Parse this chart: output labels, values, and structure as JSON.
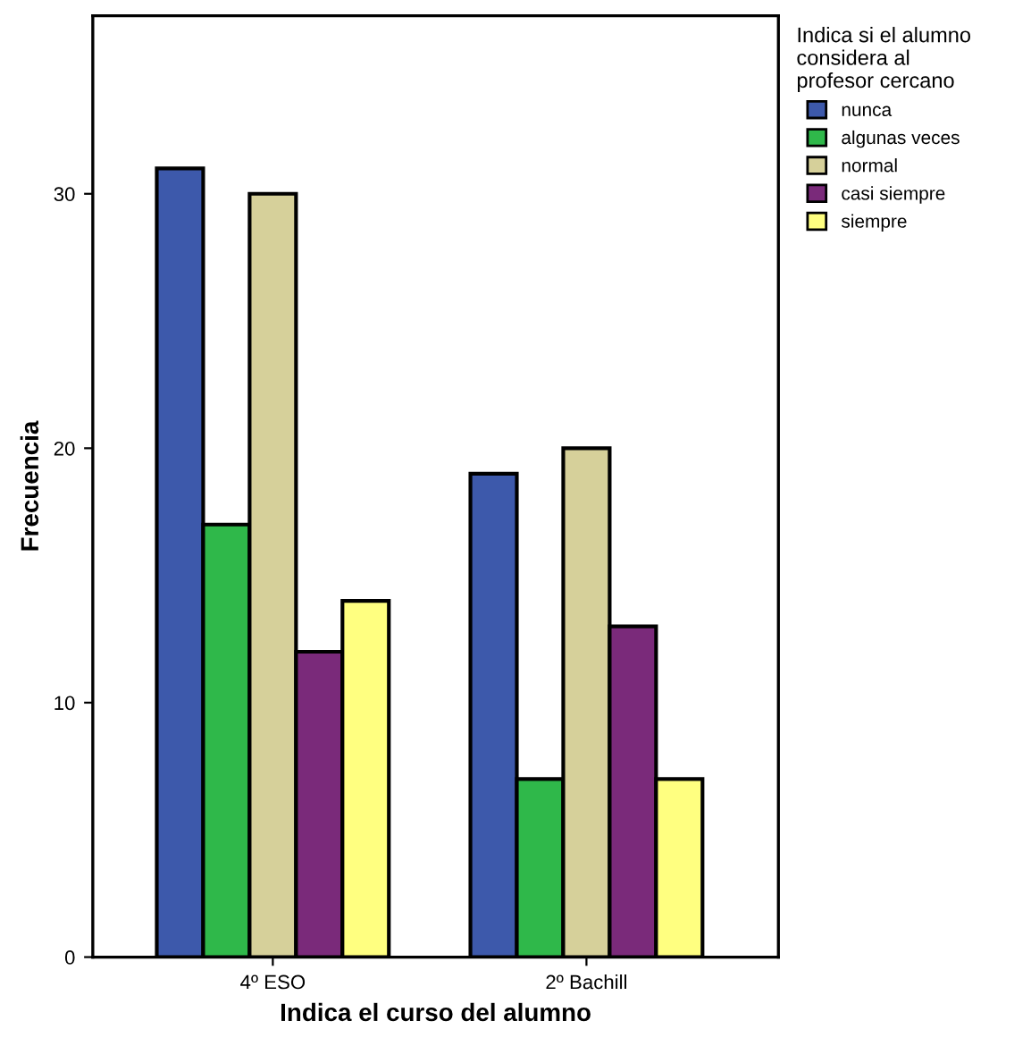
{
  "chart_data": {
    "type": "bar",
    "xlabel": "Indica el curso del alumno",
    "ylabel": "Frecuencia",
    "legend_title": "Indica si el alumno\nconsidera al\nprofesor cercano",
    "categories": [
      "4º ESO",
      "2º Bachill"
    ],
    "series": [
      {
        "name": "nunca",
        "color": "#3d59ab",
        "values": [
          31,
          19
        ]
      },
      {
        "name": "algunas veces",
        "color": "#2fb84a",
        "values": [
          17,
          7
        ]
      },
      {
        "name": "normal",
        "color": "#d6d09a",
        "values": [
          30,
          20
        ]
      },
      {
        "name": "casi siempre",
        "color": "#7a2a7a",
        "values": [
          12,
          13
        ]
      },
      {
        "name": "siempre",
        "color": "#ffff80",
        "values": [
          14,
          7
        ]
      }
    ],
    "ylim": [
      0,
      37
    ],
    "yticks": [
      0,
      10,
      20,
      30
    ],
    "grid": false,
    "legend": "top right"
  }
}
